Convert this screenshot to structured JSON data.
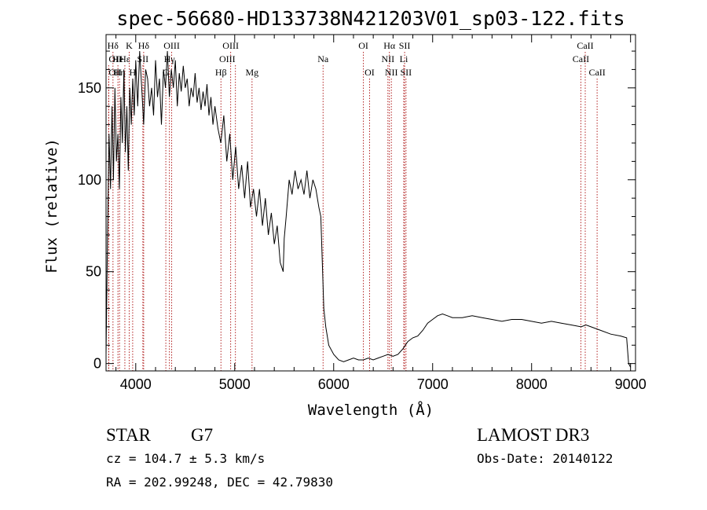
{
  "header": {
    "title": "spec-56680-HD133738N421203V01_sp03-122.fits"
  },
  "chart_data": {
    "type": "line",
    "xlabel": "Wavelength (Å)",
    "ylabel": "Flux (relative)",
    "xlim": [
      3700,
      9050
    ],
    "ylim": [
      -4,
      179
    ],
    "x_ticks": [
      4000,
      5000,
      6000,
      7000,
      8000,
      9000
    ],
    "y_ticks": [
      0,
      50,
      100,
      150
    ],
    "line_color": "#000000",
    "marker_color": "#b22222",
    "series": [
      {
        "x": [
          3700,
          3715,
          3730,
          3745,
          3760,
          3775,
          3790,
          3805,
          3820,
          3835,
          3850,
          3865,
          3880,
          3895,
          3910,
          3925,
          3940,
          3955,
          3970,
          3985,
          4000,
          4020,
          4040,
          4060,
          4080,
          4100,
          4120,
          4140,
          4160,
          4180,
          4200,
          4220,
          4240,
          4260,
          4280,
          4300,
          4320,
          4340,
          4360,
          4380,
          4400,
          4420,
          4440,
          4460,
          4480,
          4500,
          4520,
          4540,
          4560,
          4580,
          4600,
          4620,
          4640,
          4660,
          4680,
          4700,
          4720,
          4740,
          4760,
          4780,
          4800,
          4830,
          4860,
          4890,
          4920,
          4950,
          4980,
          5010,
          5040,
          5070,
          5100,
          5130,
          5160,
          5190,
          5220,
          5250,
          5280,
          5310,
          5340,
          5370,
          5400,
          5430,
          5460,
          5490,
          5500,
          5520,
          5550,
          5580,
          5610,
          5640,
          5670,
          5700,
          5730,
          5760,
          5790,
          5820,
          5850,
          5870,
          5885,
          5900,
          5920,
          5950,
          6000,
          6050,
          6100,
          6150,
          6200,
          6250,
          6300,
          6350,
          6400,
          6450,
          6500,
          6550,
          6600,
          6650,
          6700,
          6750,
          6800,
          6850,
          6900,
          6950,
          7000,
          7050,
          7100,
          7150,
          7200,
          7300,
          7400,
          7500,
          7600,
          7700,
          7800,
          7900,
          8000,
          8100,
          8200,
          8300,
          8400,
          8500,
          8550,
          8600,
          8700,
          8800,
          8900,
          8960,
          8980,
          9000
        ],
        "y": [
          5,
          70,
          125,
          95,
          140,
          100,
          150,
          110,
          125,
          95,
          145,
          120,
          160,
          115,
          140,
          105,
          150,
          130,
          155,
          135,
          165,
          140,
          170,
          150,
          130,
          160,
          155,
          140,
          150,
          135,
          165,
          145,
          155,
          130,
          160,
          150,
          170,
          145,
          160,
          150,
          165,
          140,
          158,
          148,
          162,
          150,
          155,
          140,
          150,
          145,
          158,
          142,
          150,
          138,
          148,
          140,
          152,
          135,
          145,
          130,
          140,
          128,
          120,
          135,
          110,
          125,
          100,
          118,
          95,
          108,
          90,
          110,
          85,
          95,
          80,
          95,
          75,
          90,
          70,
          82,
          65,
          75,
          55,
          50,
          68,
          80,
          100,
          92,
          105,
          95,
          100,
          92,
          105,
          90,
          100,
          95,
          85,
          80,
          55,
          30,
          20,
          10,
          5,
          2,
          1,
          2,
          3,
          2,
          2,
          3,
          2,
          3,
          4,
          5,
          4,
          5,
          8,
          12,
          14,
          15,
          18,
          22,
          24,
          26,
          27,
          26,
          25,
          25,
          26,
          25,
          24,
          23,
          24,
          24,
          23,
          22,
          23,
          22,
          21,
          20,
          21,
          20,
          18,
          16,
          15,
          14,
          0,
          -2
        ]
      }
    ],
    "markers": [
      {
        "label": "Hδ",
        "x": 3770,
        "row": 0,
        "anchor": "middle"
      },
      {
        "label": "OII",
        "x": 3727,
        "row": 1,
        "anchor": "start"
      },
      {
        "label": "OII",
        "x": 3727,
        "row": 2,
        "anchor": "start"
      },
      {
        "label": "He",
        "x": 3820,
        "row": 1,
        "anchor": "middle"
      },
      {
        "label": "Hη",
        "x": 3836,
        "row": 2,
        "anchor": "middle"
      },
      {
        "label": "K",
        "x": 3934,
        "row": 0,
        "anchor": "middle"
      },
      {
        "label": "H",
        "x": 3969,
        "row": 2,
        "anchor": "middle"
      },
      {
        "label": "Hε",
        "x": 3890,
        "row": 1,
        "anchor": "middle"
      },
      {
        "label": "Hδ",
        "x": 4080,
        "row": 0,
        "anchor": "middle"
      },
      {
        "label": "SII",
        "x": 4072,
        "row": 1,
        "anchor": "middle"
      },
      {
        "label": "OIII",
        "x": 4363,
        "row": 0,
        "anchor": "middle"
      },
      {
        "label": "Hγ",
        "x": 4340,
        "row": 1,
        "anchor": "middle"
      },
      {
        "label": "G",
        "x": 4304,
        "row": 2,
        "anchor": "middle"
      },
      {
        "label": "Hβ",
        "x": 4861,
        "row": 2,
        "anchor": "middle"
      },
      {
        "label": "OIII",
        "x": 4959,
        "row": 0,
        "anchor": "middle"
      },
      {
        "label": "OIII",
        "x": 5007,
        "row": 1,
        "anchor": "end"
      },
      {
        "label": "Mg",
        "x": 5175,
        "row": 2,
        "anchor": "middle"
      },
      {
        "label": "Na",
        "x": 5893,
        "row": 1,
        "anchor": "middle"
      },
      {
        "label": "OI",
        "x": 6300,
        "row": 0,
        "anchor": "middle"
      },
      {
        "label": "OI",
        "x": 6363,
        "row": 2,
        "anchor": "middle"
      },
      {
        "label": "Hα",
        "x": 6563,
        "row": 0,
        "anchor": "middle"
      },
      {
        "label": "NII",
        "x": 6548,
        "row": 1,
        "anchor": "middle"
      },
      {
        "label": "NII",
        "x": 6583,
        "row": 2,
        "anchor": "middle"
      },
      {
        "label": "SII",
        "x": 6717,
        "row": 0,
        "anchor": "middle"
      },
      {
        "label": "Li",
        "x": 6708,
        "row": 1,
        "anchor": "middle"
      },
      {
        "label": "SII",
        "x": 6731,
        "row": 2,
        "anchor": "middle"
      },
      {
        "label": "CaII",
        "x": 8542,
        "row": 0,
        "anchor": "middle"
      },
      {
        "label": "CaII",
        "x": 8498,
        "row": 1,
        "anchor": "middle"
      },
      {
        "label": "CaII",
        "x": 8662,
        "row": 2,
        "anchor": "middle"
      }
    ]
  },
  "info": {
    "object_class": "STAR",
    "subclass": "G7",
    "survey": "LAMOST DR3",
    "cz": "cz = 104.7 ± 5.3 km/s",
    "obs_date": "Obs-Date: 20140122",
    "coords": "RA = 202.99248, DEC =  42.79830"
  }
}
